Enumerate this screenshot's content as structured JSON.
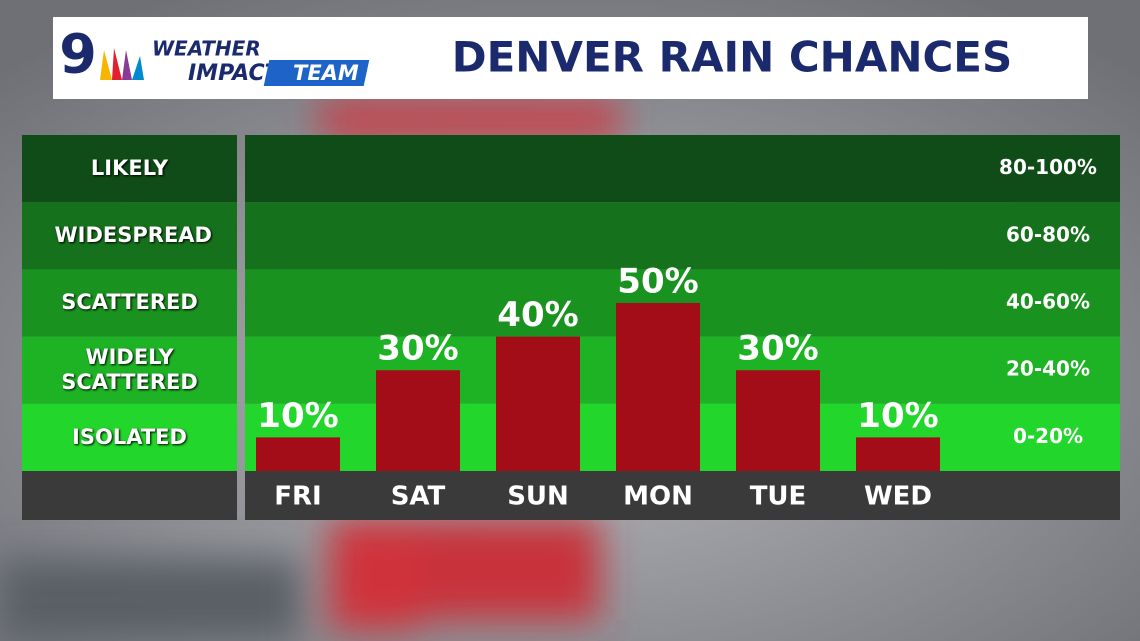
{
  "logo": {
    "number": "9",
    "line1": "WEATHER",
    "line2": "IMPACT",
    "line3": "TEAM"
  },
  "chart_data": {
    "type": "bar",
    "title": "DENVER RAIN CHANCES",
    "categories": [
      "FRI",
      "SAT",
      "SUN",
      "MON",
      "TUE",
      "WED"
    ],
    "values": [
      10,
      30,
      40,
      50,
      30,
      10
    ],
    "value_labels": [
      "10%",
      "30%",
      "40%",
      "50%",
      "30%",
      "10%"
    ],
    "color": "#a30d17",
    "ylim": [
      0,
      100
    ],
    "bands": [
      {
        "name": "ISOLATED",
        "label": "0-20%",
        "from": 0,
        "to": 20,
        "color": "#22d62b"
      },
      {
        "name": "WIDELY SCATTERED",
        "label": "20-40%",
        "from": 20,
        "to": 40,
        "color": "#1eb325"
      },
      {
        "name": "SCATTERED",
        "label": "40-60%",
        "from": 40,
        "to": 60,
        "color": "#1a9220"
      },
      {
        "name": "WIDESPREAD",
        "label": "60-80%",
        "from": 60,
        "to": 80,
        "color": "#15711b"
      },
      {
        "name": "LIKELY",
        "label": "80-100%",
        "from": 80,
        "to": 100,
        "color": "#0f4c17"
      }
    ]
  }
}
